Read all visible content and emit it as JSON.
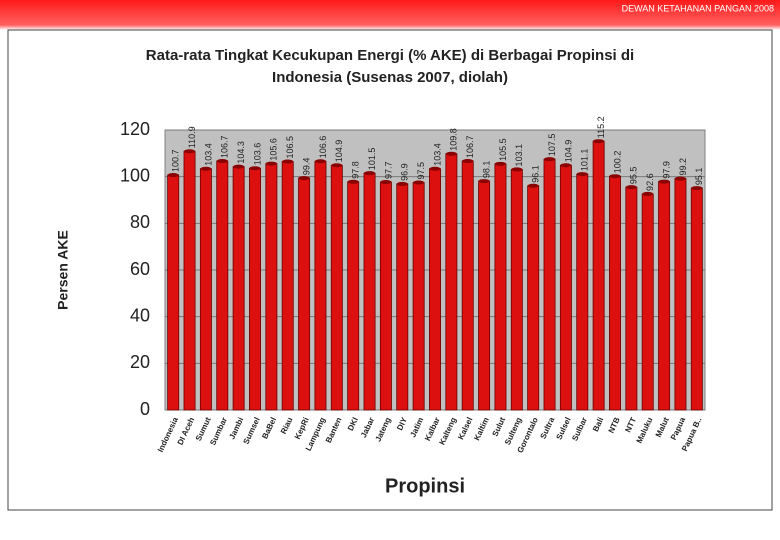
{
  "header": "DEWAN KETAHANAN PANGAN 2008",
  "chart_data": {
    "type": "bar",
    "title": "Rata-rata Tingkat Kecukupan Energi (% AKE) di Berbagai Propinsi di Indonesia (Susenas 2007, diolah)",
    "xlabel": "Propinsi",
    "ylabel": "Persen AKE",
    "categories": [
      "Indonesia",
      "DI Aceh",
      "Sumut",
      "Sumbar",
      "Jambi",
      "Sumsel",
      "BaBel",
      "Riau",
      "KepRi",
      "Lampung",
      "Banten",
      "DKI",
      "Jabar",
      "Jateng",
      "DIY",
      "Jatim",
      "Kalbar",
      "Kalteng",
      "Kalsel",
      "Kaltim",
      "Sulut",
      "Sulteng",
      "Gorontalo",
      "Sultra",
      "Sulsel",
      "Sulbar",
      "Bali",
      "NTB",
      "NTT",
      "Maluku",
      "Malut",
      "Papua",
      "Papua B.."
    ],
    "values": [
      100.7,
      110.9,
      103.4,
      106.7,
      104.3,
      103.6,
      105.6,
      106.5,
      99.4,
      106.6,
      104.9,
      97.8,
      101.5,
      97.7,
      96.9,
      97.5,
      103.4,
      109.8,
      106.7,
      98.1,
      105.5,
      103.1,
      96.1,
      107.5,
      104.9,
      101.1,
      115.2,
      100.2,
      95.5,
      92.6,
      97.9,
      99.2,
      95.1
    ],
    "color": "#dd1010",
    "ylim": [
      0,
      120
    ],
    "yticks": [
      0,
      20,
      40,
      60,
      80,
      100,
      120
    ],
    "grid": true
  }
}
